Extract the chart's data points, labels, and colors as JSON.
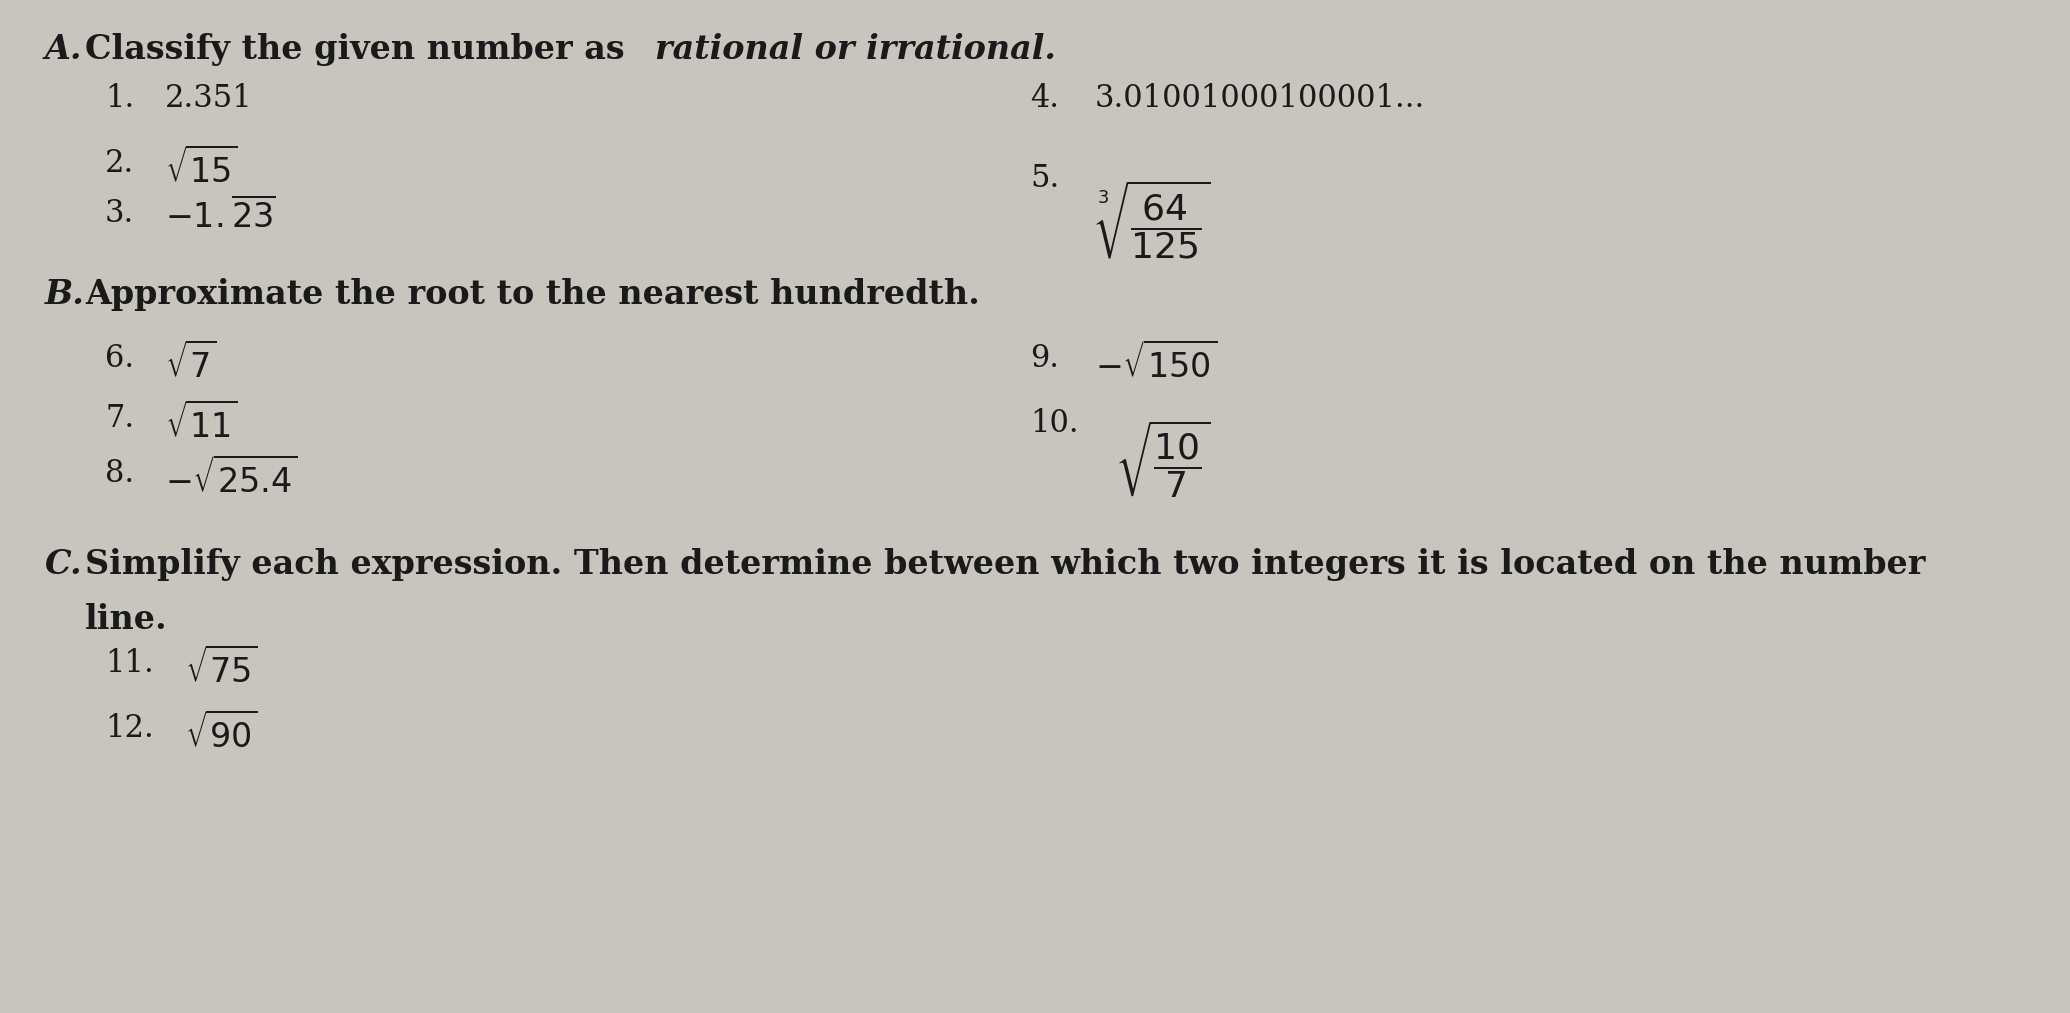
{
  "background_color": "#c8c4be",
  "body_fontsize": 22,
  "header_fontsize": 24,
  "text_color": "#1a1a1a",
  "fig_width": 20.7,
  "fig_height": 10.13,
  "dpi": 100,
  "section_A_header": "A.",
  "section_A_title_normal": "Classify the given number as ",
  "section_A_title_italic": "rational or irrational.",
  "item1_num": "1.",
  "item1_text": "2.351",
  "item2_num": "2.",
  "item2_latex": "$\\sqrt{15}$",
  "item3_num": "3.",
  "item3_latex": "$-1.\\overline{23}$",
  "item4_num": "4.",
  "item4_text": "3.01001000100001...",
  "item5_num": "5.",
  "item5_latex": "$\\sqrt[3]{\\dfrac{64}{125}}$",
  "section_B_header": "B.",
  "section_B_title": "Approximate the root to the nearest hundredth.",
  "item6_num": "6.",
  "item6_latex": "$\\sqrt{7}$",
  "item7_num": "7.",
  "item7_latex": "$\\sqrt{11}$",
  "item8_num": "8.",
  "item8_latex": "$-\\sqrt{25.4}$",
  "item9_num": "9.",
  "item9_latex": "$-\\sqrt{150}$",
  "item10_num": "10.",
  "item10_latex": "$\\sqrt{\\dfrac{10}{7}}$",
  "section_C_header": "C.",
  "section_C_title1": "Simplify each expression. Then determine between which two integers it is located on the number",
  "section_C_title2": "line.",
  "item11_num": "11.",
  "item11_latex": "$\\sqrt{75}$",
  "item12_num": "12.",
  "item12_latex": "$\\sqrt{90}$"
}
